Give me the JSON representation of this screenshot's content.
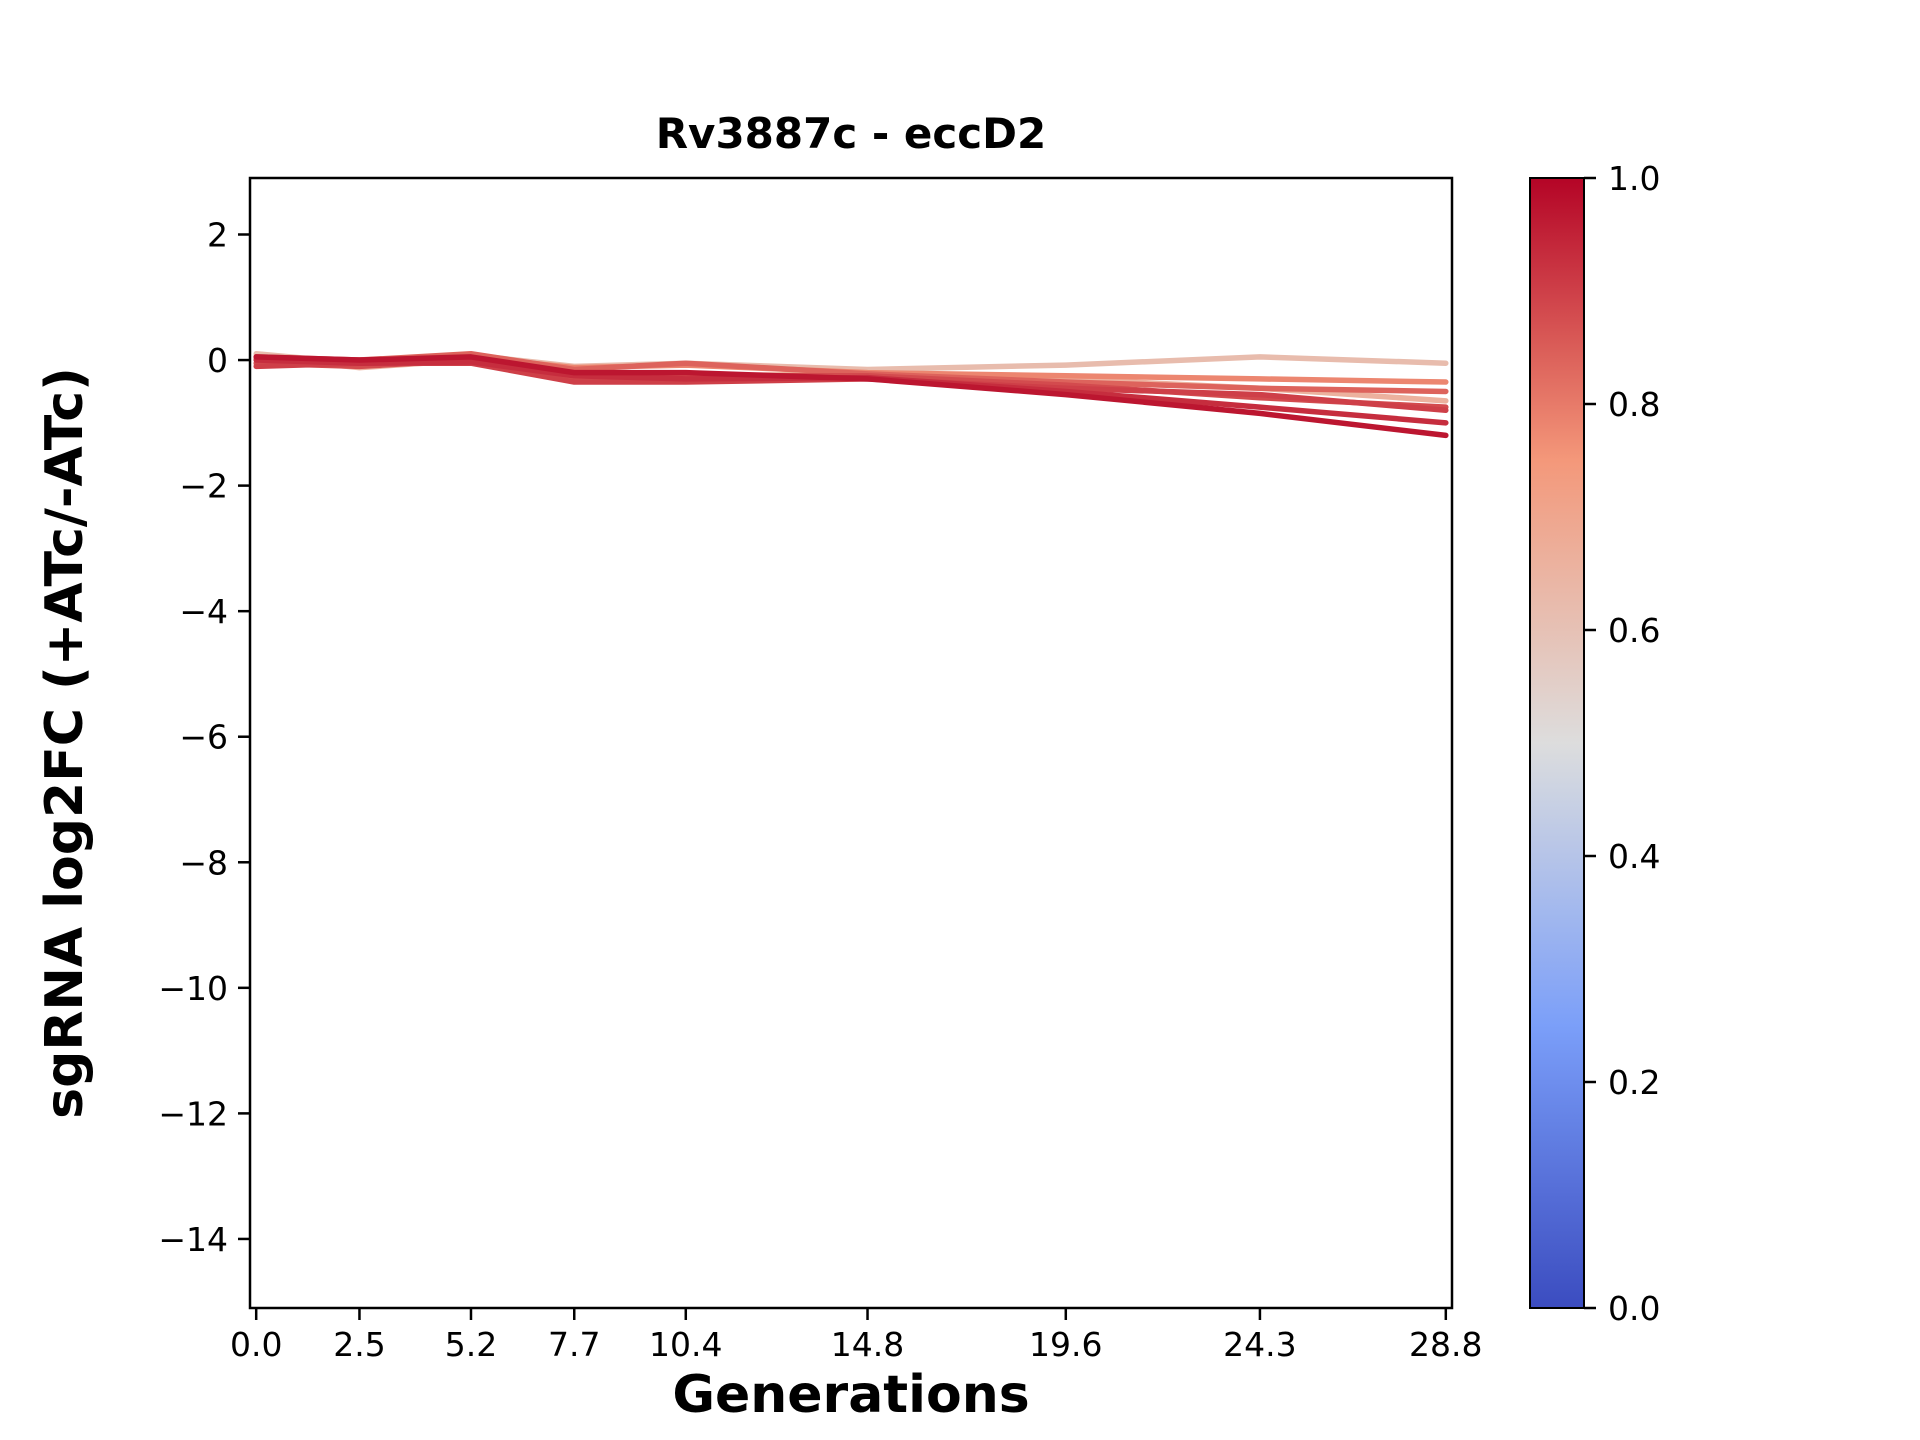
{
  "chart_data": {
    "type": "line",
    "title": "Rv3887c - eccD2",
    "xlabel": "Generations",
    "ylabel": "sgRNA log2FC (+ATc/-ATc)",
    "x": [
      0.0,
      2.5,
      5.2,
      7.7,
      10.4,
      14.8,
      19.6,
      24.3,
      28.8
    ],
    "xlim": [
      -0.15,
      28.95
    ],
    "ylim": [
      -15.1,
      2.9
    ],
    "xtick_values": [
      0.0,
      2.5,
      5.2,
      7.7,
      10.4,
      14.8,
      19.6,
      24.3,
      28.8
    ],
    "xtick_labels": [
      "0.0",
      "2.5",
      "5.2",
      "7.7",
      "10.4",
      "14.8",
      "19.6",
      "24.3",
      "28.8"
    ],
    "ytick_values": [
      2,
      0,
      -2,
      -4,
      -6,
      -8,
      -10,
      -12,
      -14
    ],
    "ytick_labels": [
      "2",
      "0",
      "−2",
      "−4",
      "−6",
      "−8",
      "−10",
      "−12",
      "−14"
    ],
    "grid": false,
    "colormap_anchors": [
      "#3b4cc0",
      "#7b9ff9",
      "#dddddd",
      "#f4987a",
      "#b40426"
    ],
    "series": [
      {
        "colormap_value": 0.62,
        "values": [
          0.1,
          -0.05,
          0.08,
          -0.1,
          -0.05,
          -0.15,
          -0.08,
          0.05,
          -0.05
        ]
      },
      {
        "colormap_value": 0.66,
        "values": [
          0.05,
          -0.12,
          0.0,
          -0.22,
          -0.25,
          -0.22,
          -0.3,
          -0.45,
          -0.65
        ]
      },
      {
        "colormap_value": 0.78,
        "values": [
          0.02,
          0.0,
          0.05,
          -0.12,
          -0.08,
          -0.2,
          -0.25,
          -0.3,
          -0.35
        ]
      },
      {
        "colormap_value": 0.84,
        "values": [
          0.05,
          0.0,
          0.1,
          -0.15,
          -0.05,
          -0.22,
          -0.35,
          -0.45,
          -0.5
        ]
      },
      {
        "colormap_value": 0.88,
        "values": [
          -0.05,
          -0.1,
          0.0,
          -0.3,
          -0.25,
          -0.25,
          -0.4,
          -0.6,
          -0.75
        ]
      },
      {
        "colormap_value": 0.9,
        "values": [
          -0.1,
          -0.05,
          -0.05,
          -0.35,
          -0.35,
          -0.3,
          -0.45,
          -0.55,
          -0.8
        ]
      },
      {
        "colormap_value": 0.93,
        "values": [
          0.0,
          -0.05,
          -0.03,
          -0.25,
          -0.3,
          -0.28,
          -0.5,
          -0.75,
          -1.0
        ]
      },
      {
        "colormap_value": 0.97,
        "values": [
          0.05,
          0.0,
          0.05,
          -0.2,
          -0.2,
          -0.3,
          -0.55,
          -0.85,
          -1.2
        ]
      }
    ],
    "colorbar": {
      "min": 0.0,
      "max": 1.0,
      "colormap": "coolwarm",
      "tick_values": [
        1.0,
        0.8,
        0.6,
        0.4,
        0.2,
        0.0
      ],
      "tick_labels": [
        "1.0",
        "0.8",
        "0.6",
        "0.4",
        "0.2",
        "0.0"
      ]
    }
  }
}
